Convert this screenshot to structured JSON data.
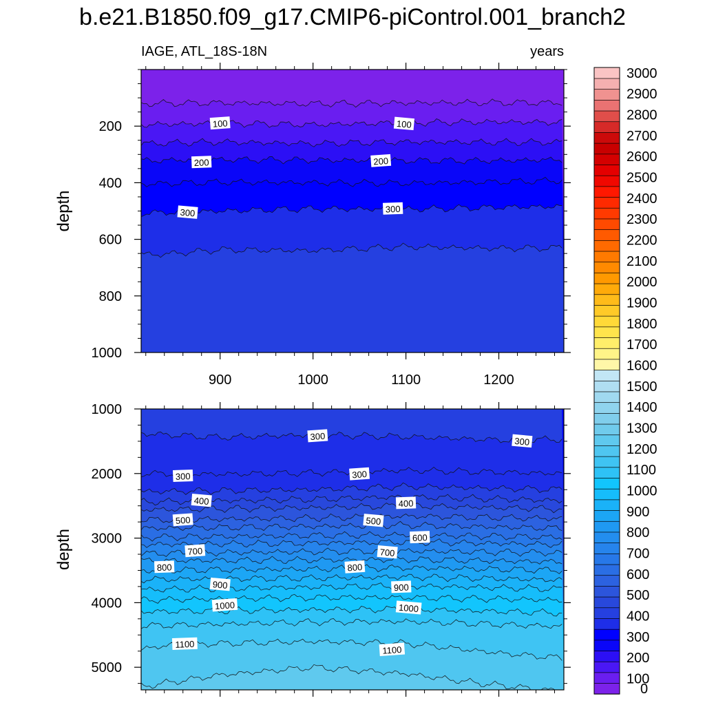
{
  "title": "b.e21.B1850.f09_g17.CMIP6-piControl.001_branch2",
  "chart_data": {
    "type": "heatmap",
    "variable_label": "IAGE, ATL_18S-18N",
    "units_label": "years",
    "ylabel": "depth",
    "x_range": [
      815,
      1270
    ],
    "x_ticks": [
      "900",
      "1000",
      "1100",
      "1200"
    ],
    "x_tick_values": [
      900,
      1000,
      1100,
      1200
    ],
    "panels": [
      {
        "name": "upper",
        "y_range": [
          0,
          1000
        ],
        "y_ticks": [
          "200",
          "400",
          "600",
          "800",
          "1000"
        ],
        "y_tick_values": [
          200,
          400,
          600,
          800,
          1000
        ],
        "contours": [
          {
            "level": 50,
            "depth_profile": [
              [
                815,
                120
              ],
              [
                900,
                118
              ],
              [
                1000,
                121
              ],
              [
                1100,
                118
              ],
              [
                1200,
                117
              ],
              [
                1270,
                118
              ]
            ]
          },
          {
            "level": 100,
            "depth_profile": [
              [
                815,
                195
              ],
              [
                900,
                190
              ],
              [
                1000,
                195
              ],
              [
                1100,
                188
              ],
              [
                1200,
                185
              ],
              [
                1270,
                187
              ]
            ]
          },
          {
            "level": 150,
            "depth_profile": [
              [
                815,
                262
              ],
              [
                900,
                256
              ],
              [
                1000,
                262
              ],
              [
                1100,
                256
              ],
              [
                1200,
                257
              ],
              [
                1270,
                257
              ]
            ]
          },
          {
            "level": 200,
            "depth_profile": [
              [
                815,
                322
              ],
              [
                900,
                318
              ],
              [
                1000,
                320
              ],
              [
                1100,
                322
              ],
              [
                1200,
                322
              ],
              [
                1270,
                318
              ]
            ]
          },
          {
            "level": 250,
            "depth_profile": [
              [
                815,
                405
              ],
              [
                900,
                398
              ],
              [
                1000,
                400
              ],
              [
                1100,
                402
              ],
              [
                1200,
                397
              ],
              [
                1270,
                392
              ]
            ]
          },
          {
            "level": 300,
            "depth_profile": [
              [
                815,
                508
              ],
              [
                900,
                500
              ],
              [
                1000,
                492
              ],
              [
                1100,
                494
              ],
              [
                1200,
                487
              ],
              [
                1270,
                484
              ]
            ]
          },
          {
            "level": 350,
            "depth_profile": [
              [
                815,
                650
              ],
              [
                830,
                655
              ],
              [
                900,
                637
              ],
              [
                1000,
                640
              ],
              [
                1100,
                626
              ],
              [
                1200,
                632
              ],
              [
                1270,
                630
              ]
            ]
          }
        ],
        "labels": [
          {
            "text": "100",
            "x": 900,
            "y": 190
          },
          {
            "text": "100",
            "x": 1098,
            "y": 192
          },
          {
            "text": "200",
            "x": 880,
            "y": 328
          },
          {
            "text": "200",
            "x": 1073,
            "y": 323
          },
          {
            "text": "300",
            "x": 865,
            "y": 505
          },
          {
            "text": "300",
            "x": 1086,
            "y": 492
          }
        ]
      },
      {
        "name": "lower",
        "y_range": [
          1000,
          5350
        ],
        "y_ticks": [
          "1000",
          "2000",
          "3000",
          "4000",
          "5000"
        ],
        "y_tick_values": [
          1000,
          2000,
          3000,
          4000,
          5000
        ],
        "contours": [
          {
            "level": 350,
            "depth_profile": [
              [
                815,
                1000
              ],
              [
                1000,
                1000
              ],
              [
                1270,
                1000
              ]
            ]
          },
          {
            "level": 300,
            "depth_profile": [
              [
                815,
                1380
              ],
              [
                900,
                1440
              ],
              [
                1000,
                1400
              ],
              [
                1100,
                1430
              ],
              [
                1200,
                1480
              ],
              [
                1270,
                1470
              ]
            ]
          },
          {
            "level": 300,
            "depth_profile": [
              [
                815,
                2000
              ],
              [
                900,
                2010
              ],
              [
                1000,
                1990
              ],
              [
                1100,
                1950
              ],
              [
                1200,
                1980
              ],
              [
                1270,
                2000
              ]
            ]
          },
          {
            "level": 350,
            "depth_profile": [
              [
                815,
                2280
              ],
              [
                1000,
                2250
              ],
              [
                1100,
                2200
              ],
              [
                1270,
                2250
              ]
            ]
          },
          {
            "level": 400,
            "depth_profile": [
              [
                815,
                2440
              ],
              [
                1000,
                2400
              ],
              [
                1100,
                2360
              ],
              [
                1270,
                2420
              ]
            ]
          },
          {
            "level": 450,
            "depth_profile": [
              [
                815,
                2560
              ],
              [
                1000,
                2530
              ],
              [
                1100,
                2500
              ],
              [
                1270,
                2550
              ]
            ]
          },
          {
            "level": 500,
            "depth_profile": [
              [
                815,
                2720
              ],
              [
                1000,
                2690
              ],
              [
                1100,
                2660
              ],
              [
                1270,
                2700
              ]
            ]
          },
          {
            "level": 550,
            "depth_profile": [
              [
                815,
                2850
              ],
              [
                1000,
                2820
              ],
              [
                1100,
                2800
              ],
              [
                1270,
                2850
              ]
            ]
          },
          {
            "level": 600,
            "depth_profile": [
              [
                815,
                2990
              ],
              [
                1000,
                2960
              ],
              [
                1100,
                2950
              ],
              [
                1270,
                2990
              ]
            ]
          },
          {
            "level": 650,
            "depth_profile": [
              [
                815,
                3100
              ],
              [
                1000,
                3080
              ],
              [
                1100,
                3060
              ],
              [
                1270,
                3100
              ]
            ]
          },
          {
            "level": 700,
            "depth_profile": [
              [
                815,
                3240
              ],
              [
                1000,
                3210
              ],
              [
                1100,
                3200
              ],
              [
                1270,
                3230
              ]
            ]
          },
          {
            "level": 750,
            "depth_profile": [
              [
                815,
                3350
              ],
              [
                1000,
                3340
              ],
              [
                1100,
                3330
              ],
              [
                1270,
                3370
              ]
            ]
          },
          {
            "level": 800,
            "depth_profile": [
              [
                815,
                3500
              ],
              [
                1000,
                3480
              ],
              [
                1100,
                3460
              ],
              [
                1270,
                3500
              ]
            ]
          },
          {
            "level": 850,
            "depth_profile": [
              [
                815,
                3640
              ],
              [
                1000,
                3620
              ],
              [
                1100,
                3600
              ],
              [
                1270,
                3650
              ]
            ]
          },
          {
            "level": 900,
            "depth_profile": [
              [
                815,
                3800
              ],
              [
                1000,
                3760
              ],
              [
                1100,
                3740
              ],
              [
                1270,
                3790
              ]
            ]
          },
          {
            "level": 950,
            "depth_profile": [
              [
                815,
                3960
              ],
              [
                1000,
                3920
              ],
              [
                1100,
                3920
              ],
              [
                1270,
                3960
              ]
            ]
          },
          {
            "level": 1000,
            "depth_profile": [
              [
                815,
                4140
              ],
              [
                1000,
                4110
              ],
              [
                1100,
                4100
              ],
              [
                1270,
                4160
              ]
            ]
          },
          {
            "level": 1050,
            "depth_profile": [
              [
                815,
                4360
              ],
              [
                1000,
                4300
              ],
              [
                1100,
                4290
              ],
              [
                1270,
                4370
              ]
            ]
          },
          {
            "level": 1100,
            "depth_profile": [
              [
                815,
                4720
              ],
              [
                850,
                4650
              ],
              [
                1000,
                4600
              ],
              [
                1100,
                4630
              ],
              [
                1200,
                4780
              ],
              [
                1270,
                4860
              ]
            ]
          },
          {
            "level": 1150,
            "depth_profile": [
              [
                815,
                5300
              ],
              [
                900,
                5120
              ],
              [
                1000,
                5000
              ],
              [
                1100,
                5100
              ],
              [
                1180,
                5250
              ],
              [
                1250,
                5350
              ]
            ]
          }
        ],
        "labels": [
          {
            "text": "300",
            "x": 1005,
            "y": 1420
          },
          {
            "text": "300",
            "x": 1225,
            "y": 1500
          },
          {
            "text": "300",
            "x": 860,
            "y": 2040
          },
          {
            "text": "300",
            "x": 1050,
            "y": 2010
          },
          {
            "text": "400",
            "x": 880,
            "y": 2420
          },
          {
            "text": "400",
            "x": 1100,
            "y": 2460
          },
          {
            "text": "500",
            "x": 860,
            "y": 2720
          },
          {
            "text": "500",
            "x": 1065,
            "y": 2730
          },
          {
            "text": "600",
            "x": 1115,
            "y": 2990
          },
          {
            "text": "700",
            "x": 873,
            "y": 3200
          },
          {
            "text": "700",
            "x": 1080,
            "y": 3220
          },
          {
            "text": "800",
            "x": 840,
            "y": 3450
          },
          {
            "text": "800",
            "x": 1045,
            "y": 3450
          },
          {
            "text": "900",
            "x": 900,
            "y": 3720
          },
          {
            "text": "900",
            "x": 1095,
            "y": 3760
          },
          {
            "text": "1000",
            "x": 905,
            "y": 4040
          },
          {
            "text": "1000",
            "x": 1103,
            "y": 4080
          },
          {
            "text": "1100",
            "x": 862,
            "y": 4640
          },
          {
            "text": "1100",
            "x": 1085,
            "y": 4730
          }
        ]
      }
    ],
    "colorbar": {
      "levels": [
        "0",
        "100",
        "200",
        "300",
        "400",
        "500",
        "600",
        "700",
        "800",
        "900",
        "1000",
        "1100",
        "1200",
        "1300",
        "1400",
        "1500",
        "1600",
        "1700",
        "1800",
        "1900",
        "2000",
        "2100",
        "2200",
        "2300",
        "2400",
        "2500",
        "2600",
        "2700",
        "2800",
        "2900",
        "3000"
      ],
      "colors": [
        "#7c22ea",
        "#6a1ef0",
        "#4a17f5",
        "#2c0ff5",
        "#0a06f8",
        "#0000ff",
        "#1e2ee8",
        "#2540e0",
        "#2848dc",
        "#2c55dc",
        "#2c62e0",
        "#2a6ee4",
        "#2778e8",
        "#2684ec",
        "#238eef",
        "#1f99f2",
        "#1ca6f5",
        "#1ab2f8",
        "#16bdfb",
        "#12c5fd",
        "#2ec2f6",
        "#3fc4f3",
        "#4fc6f0",
        "#5fc9ee",
        "#70cbec",
        "#80ceec",
        "#90d4ee",
        "#a0d9f0",
        "#b0def2",
        "#c2e6f5",
        "#fff7a8",
        "#fff488",
        "#ffee6a",
        "#ffe44c",
        "#ffd938",
        "#ffca28",
        "#ffbb1a",
        "#ffaa0a",
        "#ff9900",
        "#ff8a00",
        "#ff7a00",
        "#ff6a00",
        "#ff5a00",
        "#ff4a00",
        "#ff3a00",
        "#ff2a00",
        "#ff1800",
        "#f00800",
        "#e40000",
        "#d40000",
        "#c80000",
        "#cc0a0a",
        "#d62a28",
        "#e04e4a",
        "#ea7272",
        "#f09290",
        "#f5b0b0",
        "#fac4c4"
      ]
    }
  }
}
